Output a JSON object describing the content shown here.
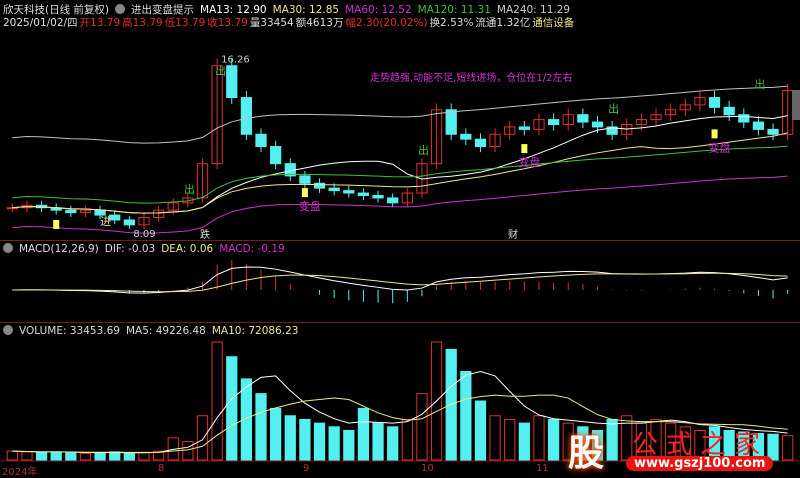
{
  "header": {
    "title": "欣天科技(日线 前复权)",
    "indicator": "进出变盘提示",
    "ma13": "MA13: 12.90",
    "ma30": "MA30: 12.85",
    "ma60": "MA60: 12.52",
    "ma120": "MA120: 11.31",
    "ma240": "MA240: 11.29"
  },
  "quote": {
    "date": "2025/01/02/四",
    "open": "开13.79",
    "high": "高13.79",
    "low": "低13.79",
    "close": "收13.79",
    "volume": "量33454",
    "amount": "额4613万",
    "change": "幅2.30(20.02%)",
    "turnover": "换2.53%",
    "float": "流通1.32亿",
    "sector": "通信设备"
  },
  "annotations": {
    "high": "16.26",
    "low": "8.09",
    "out": "出",
    "in": "进",
    "turn": "变盘",
    "advice": "走势趋强,动能不足,短线进场，仓位在1/2左右",
    "fall": "跌",
    "cai": "财"
  },
  "macd": {
    "label": "MACD(12,26,9)",
    "dif": "DIF: -0.03",
    "dea": "DEA: 0.06",
    "macd": "MACD: -0.19"
  },
  "volume": {
    "label": "VOLUME: 33453.69",
    "ma5": "MA5: 49226.48",
    "ma10": "MA10: 72086.23"
  },
  "xaxis": [
    "2024年",
    "8",
    "9",
    "10",
    "11"
  ],
  "watermark": {
    "logo": "股",
    "name": "公式之家",
    "url": "www.gszj100.com"
  },
  "colors": {
    "up": "#e03030",
    "down": "#54f0f0",
    "ma13": "#ffffff",
    "ma30": "#f0e68c",
    "ma60": "#d030d0",
    "ma120": "#40c040",
    "ma240": "#c0c0c0"
  },
  "chart_data": {
    "type": "candlestick",
    "price_range": [
      8.09,
      16.26
    ],
    "closes": [
      9.0,
      9.1,
      9.0,
      8.9,
      8.8,
      8.9,
      8.7,
      8.5,
      8.3,
      8.6,
      8.9,
      9.2,
      9.4,
      10.8,
      14.8,
      13.5,
      12.0,
      11.5,
      10.8,
      10.3,
      10.0,
      9.8,
      9.7,
      9.6,
      9.5,
      9.4,
      9.2,
      9.6,
      10.8,
      13.0,
      12.0,
      11.8,
      11.5,
      12.0,
      12.3,
      12.2,
      12.6,
      12.4,
      12.8,
      12.5,
      12.3,
      12.0,
      12.4,
      12.6,
      12.8,
      13.0,
      13.2,
      13.5,
      13.1,
      12.8,
      12.5,
      12.2,
      12.0,
      13.79
    ],
    "volumes": [
      12,
      11,
      10,
      11,
      10,
      9,
      10,
      11,
      9,
      10,
      12,
      30,
      25,
      60,
      160,
      140,
      110,
      90,
      70,
      60,
      55,
      50,
      45,
      40,
      70,
      50,
      45,
      55,
      90,
      160,
      150,
      120,
      80,
      60,
      55,
      50,
      60,
      55,
      50,
      45,
      40,
      55,
      60,
      50,
      55,
      50,
      45,
      40,
      45,
      40,
      38,
      36,
      35,
      33
    ]
  }
}
